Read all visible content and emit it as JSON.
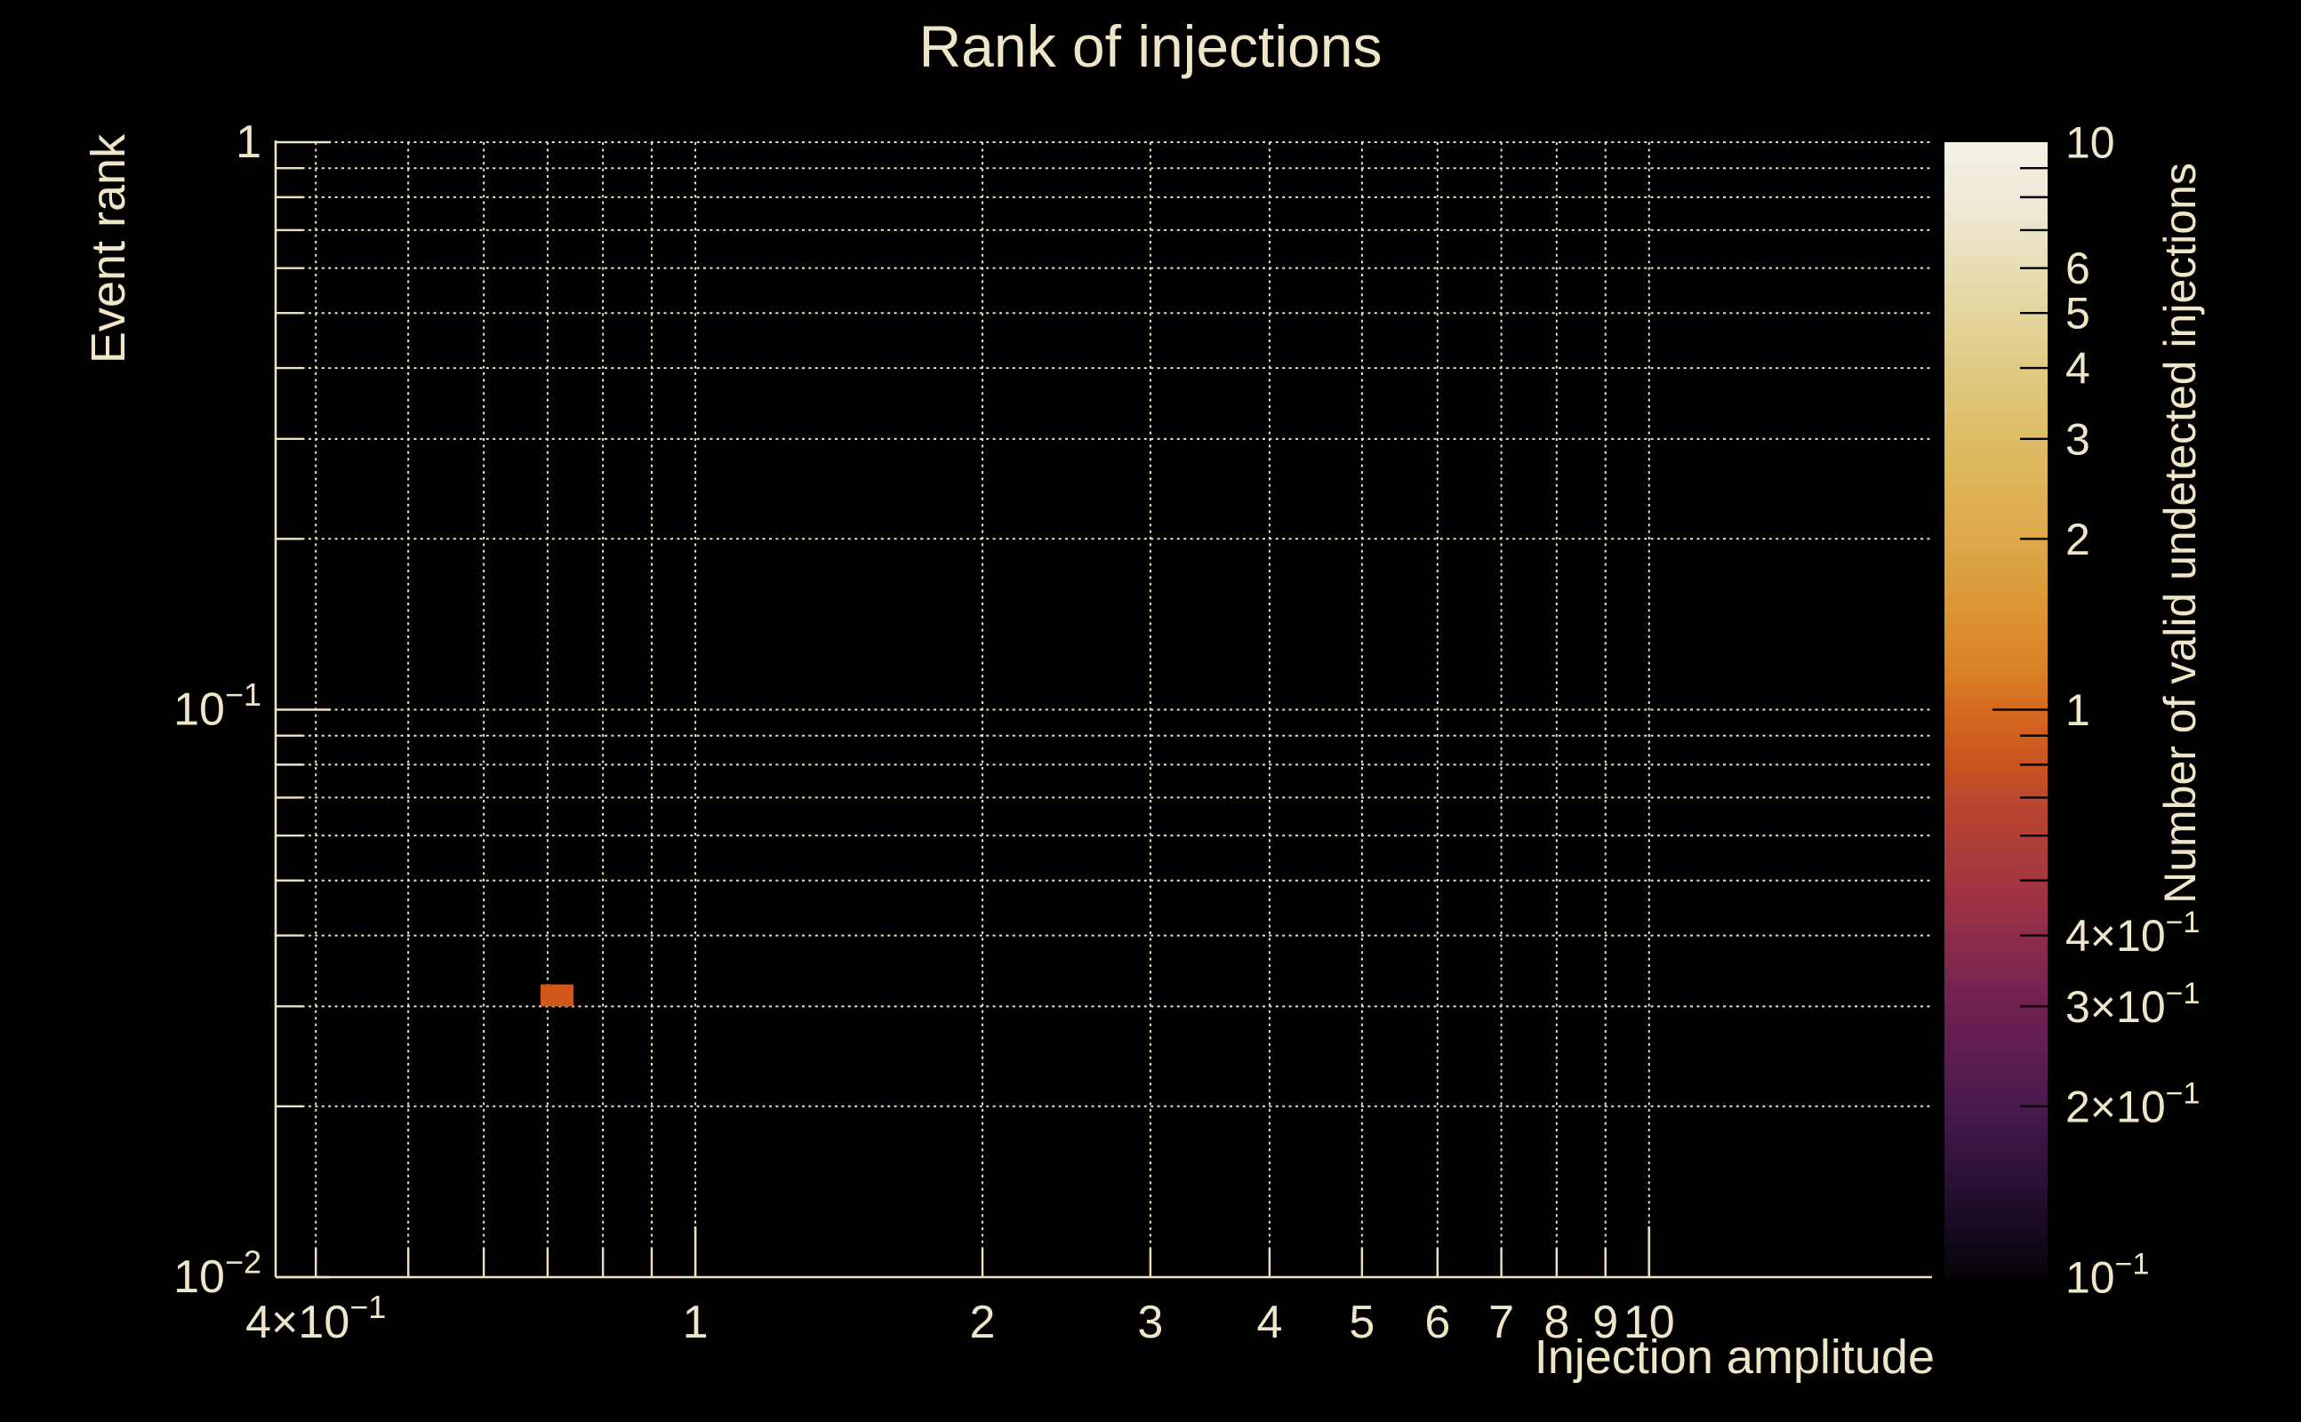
{
  "page": {
    "title": "Rank of injections",
    "background": "#000000"
  },
  "colors": {
    "text": "#efe6ca",
    "axis": "#ece2c2",
    "grid": "#ece2c2",
    "bin_fill": "#d2571d",
    "colorbar_tick": "#000000"
  },
  "chart_data": {
    "type": "heatmap",
    "title": "Rank of injections",
    "xlabel": "Injection amplitude",
    "ylabel": "Event rank",
    "colorbar_label": "Number of valid undetected injections",
    "x_scale": "log",
    "y_scale": "log",
    "z_scale": "log",
    "xlim": [
      0.363,
      19.8
    ],
    "ylim": [
      0.01,
      1.0
    ],
    "zlim": [
      0.1,
      10
    ],
    "grid": "dotted",
    "legend_position": "right-colorbar",
    "bins": [
      {
        "x": [
          0.688,
          0.745
        ],
        "y": [
          0.03,
          0.0328
        ],
        "value": 1,
        "color": "#d2571d"
      }
    ],
    "x_tick_labels": [
      {
        "v": 0.4,
        "base": "4×10",
        "sup": "−1"
      },
      {
        "v": 1,
        "base": "1"
      },
      {
        "v": 2,
        "base": "2"
      },
      {
        "v": 3,
        "base": "3"
      },
      {
        "v": 4,
        "base": "4"
      },
      {
        "v": 5,
        "base": "5"
      },
      {
        "v": 6,
        "base": "6"
      },
      {
        "v": 7,
        "base": "7"
      },
      {
        "v": 8,
        "base": "8"
      },
      {
        "v": 9,
        "base": "9"
      },
      {
        "v": 10,
        "base": "10"
      }
    ],
    "y_tick_labels": [
      {
        "v": 1,
        "base": "1"
      },
      {
        "v": 0.1,
        "base": "10",
        "sup": "−1"
      },
      {
        "v": 0.01,
        "base": "10",
        "sup": "−2"
      }
    ],
    "x_grid_values": [
      0.4,
      0.5,
      0.6,
      0.7,
      0.8,
      0.9,
      1,
      2,
      3,
      4,
      5,
      6,
      7,
      8,
      9,
      10
    ],
    "y_grid_values": [
      0.02,
      0.03,
      0.04,
      0.05,
      0.06,
      0.07,
      0.08,
      0.09,
      0.1,
      0.2,
      0.3,
      0.4,
      0.5,
      0.6,
      0.7,
      0.8,
      0.9,
      1
    ],
    "x_major_ticks": [
      1,
      10
    ],
    "x_minor_ticks": [
      0.4,
      0.5,
      0.6,
      0.7,
      0.8,
      0.9,
      2,
      3,
      4,
      5,
      6,
      7,
      8,
      9
    ],
    "y_major_ticks": [
      1,
      0.1,
      0.01
    ],
    "y_minor_ticks": [
      0.2,
      0.3,
      0.4,
      0.5,
      0.6,
      0.7,
      0.8,
      0.9,
      0.02,
      0.03,
      0.04,
      0.05,
      0.06,
      0.07,
      0.08,
      0.09
    ],
    "colorbar": {
      "tick_labels": [
        {
          "v": 10,
          "base": "10"
        },
        {
          "v": 6,
          "base": "6"
        },
        {
          "v": 5,
          "base": "5"
        },
        {
          "v": 4,
          "base": "4"
        },
        {
          "v": 3,
          "base": "3"
        },
        {
          "v": 2,
          "base": "2"
        },
        {
          "v": 1,
          "base": "1"
        },
        {
          "v": 0.4,
          "base": "4×10",
          "sup": "−1"
        },
        {
          "v": 0.3,
          "base": "3×10",
          "sup": "−1"
        },
        {
          "v": 0.2,
          "base": "2×10",
          "sup": "−1"
        },
        {
          "v": 0.1,
          "base": "10",
          "sup": "−1"
        }
      ],
      "major_ticks": [
        1
      ],
      "minor_ticks": [
        9,
        8,
        7,
        6,
        5,
        4,
        3,
        2,
        0.9,
        0.8,
        0.7,
        0.6,
        0.5,
        0.4,
        0.3,
        0.2
      ],
      "gradient_stops": [
        {
          "offset": 0.0,
          "color": "#f3f0e7"
        },
        {
          "offset": 0.06,
          "color": "#eee8d4"
        },
        {
          "offset": 0.11,
          "color": "#e8ddb4"
        },
        {
          "offset": 0.15,
          "color": "#e5d69f"
        },
        {
          "offset": 0.2,
          "color": "#e0ca82"
        },
        {
          "offset": 0.26,
          "color": "#ddbd66"
        },
        {
          "offset": 0.35,
          "color": "#dda849"
        },
        {
          "offset": 0.41,
          "color": "#dc9634"
        },
        {
          "offset": 0.47,
          "color": "#d97f24"
        },
        {
          "offset": 0.5,
          "color": "#d4691e"
        },
        {
          "offset": 0.55,
          "color": "#c9531f"
        },
        {
          "offset": 0.58,
          "color": "#bc462e"
        },
        {
          "offset": 0.65,
          "color": "#a4363f"
        },
        {
          "offset": 0.7,
          "color": "#8d2d4b"
        },
        {
          "offset": 0.76,
          "color": "#6f2252"
        },
        {
          "offset": 0.85,
          "color": "#491a4e"
        },
        {
          "offset": 0.91,
          "color": "#2c1138"
        },
        {
          "offset": 0.96,
          "color": "#150a1e"
        },
        {
          "offset": 1.0,
          "color": "#070409"
        }
      ]
    }
  }
}
